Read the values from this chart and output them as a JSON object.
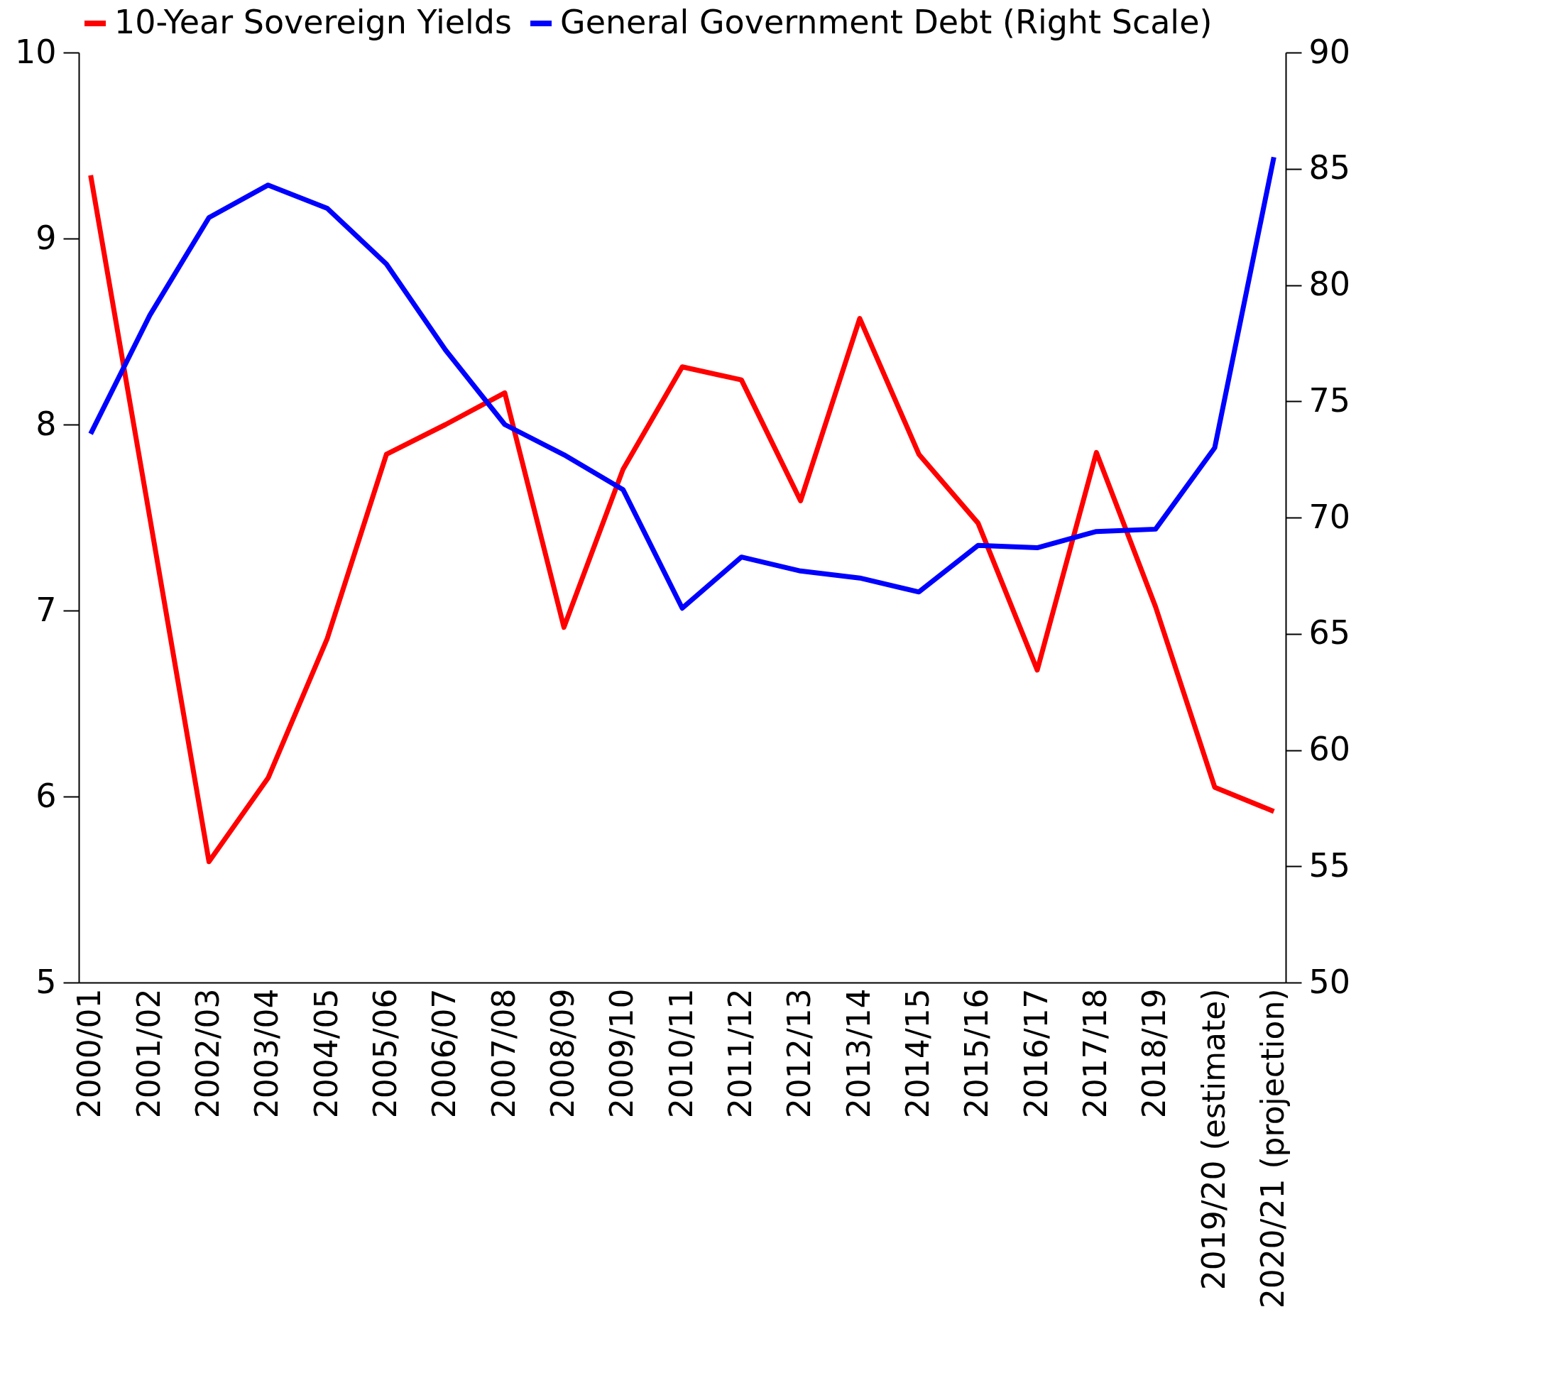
{
  "chart_data": {
    "type": "line",
    "categories": [
      "2000/01",
      "2001/02",
      "2002/03",
      "2003/04",
      "2004/05",
      "2005/06",
      "2006/07",
      "2007/08",
      "2008/09",
      "2009/10",
      "2010/11",
      "2011/12",
      "2012/13",
      "2013/14",
      "2014/15",
      "2015/16",
      "2016/17",
      "2017/18",
      "2018/19",
      "2019/20 (estimate)",
      "2020/21 (projection)"
    ],
    "series": [
      {
        "name": "10-Year Sovereign Yields",
        "color": "#ff0000",
        "values": [
          9.34,
          7.5,
          5.65,
          6.1,
          6.85,
          7.84,
          8.0,
          8.17,
          6.91,
          7.76,
          8.31,
          8.24,
          7.59,
          8.57,
          7.84,
          7.47,
          6.68,
          7.85,
          7.02,
          6.05,
          5.92
        ]
      },
      {
        "name": "General Government Debt (Right Scale)",
        "color": "#0000ff",
        "axis": "y2",
        "values": [
          73.6,
          78.7,
          82.9,
          84.3,
          83.3,
          80.9,
          77.2,
          74.0,
          72.7,
          71.2,
          66.1,
          68.3,
          67.7,
          67.4,
          66.8,
          68.8,
          68.7,
          69.4,
          69.5,
          73.0,
          85.5
        ]
      }
    ],
    "ylim": [
      5,
      10
    ],
    "yticks": [
      5,
      6,
      7,
      8,
      9,
      10
    ],
    "y2lim": [
      50,
      90
    ],
    "y2ticks": [
      50,
      55,
      60,
      65,
      70,
      75,
      80,
      85,
      90
    ],
    "grid": false,
    "legend": "top",
    "marker": "none",
    "line_style": "solid"
  }
}
